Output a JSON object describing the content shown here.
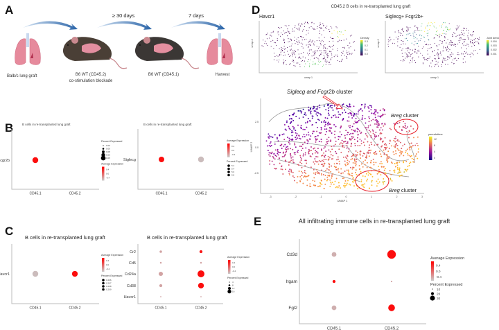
{
  "panel_labels": {
    "a": "A",
    "b": "B",
    "c": "C",
    "d": "D",
    "e": "E"
  },
  "panel_a": {
    "steps": [
      "Balb/c lung graft",
      "B6 WT (CD45.2)",
      "co-stimulation blockade",
      "B6 WT (CD45.1)",
      "Harvest"
    ],
    "intervals": [
      "≥  30 days",
      "7 days"
    ],
    "colors": {
      "lung": "#e68a9c",
      "mouse1": "#4a3f36",
      "mouse2": "#3b3735",
      "arrow": "#2a64a8"
    }
  },
  "chart_data": [
    {
      "id": "b1",
      "type": "dotplot",
      "title": "B cells in re-transplanted lung graft",
      "genes": [
        "Fcgr2b"
      ],
      "groups": [
        "CD45.1",
        "CD45.2"
      ],
      "avg_expression": [
        [
          0.7,
          null
        ]
      ],
      "pct_expressed": [
        [
          0.09,
          0
        ]
      ],
      "legend_order": "pct-first",
      "pct_title": "Percent Expressed",
      "pct_labels": [
        "0.09",
        "0.00",
        "0.08",
        "0.00",
        "0.05"
      ],
      "avg_title": "Average Expression",
      "avg_labels": [
        "0.4",
        "0.0",
        "-0.4"
      ]
    },
    {
      "id": "b2",
      "type": "dotplot",
      "title": "B cells in re-transplanted lung graft",
      "genes": [
        "Siglecg"
      ],
      "groups": [
        "CD45.1",
        "CD45.2"
      ],
      "avg_expression": [
        [
          0.7,
          -0.7
        ]
      ],
      "pct_expressed": [
        [
          5.2,
          5.8
        ]
      ],
      "legend_order": "avg-first",
      "avg_title": "Average Expression",
      "avg_labels": [
        "0.4",
        "0.0",
        "-0.4"
      ],
      "pct_title": "Percent Expressed",
      "pct_labels": [
        "5.2",
        "5.4",
        "5.6",
        "5.8"
      ]
    },
    {
      "id": "c1",
      "type": "dotplot",
      "title": "B cells in re-transplanted lung graft",
      "genes": [
        "Havcr1"
      ],
      "groups": [
        "CD45.1",
        "CD45.2"
      ],
      "avg_expression": [
        [
          -0.7,
          0.7
        ]
      ],
      "pct_expressed": [
        [
          0.209,
          0.206
        ]
      ],
      "legend_order": "avg-first",
      "avg_title": "Average Expression",
      "avg_labels": [
        "0.4",
        "0.0",
        "-0.4"
      ],
      "pct_title": "Percent Expressed",
      "pct_labels": [
        "0.206",
        "0.207",
        "0.208",
        "0.209"
      ]
    },
    {
      "id": "c2",
      "type": "dotplot",
      "title": "B cells in re-transplanted lung graft",
      "genes": [
        "Cr2",
        "Cd5",
        "Cd24a",
        "Cd38",
        "Havcr1"
      ],
      "groups": [
        "CD45.1",
        "CD45.2"
      ],
      "avg_expression": [
        [
          -0.5,
          0.6
        ],
        [
          -0.5,
          -0.5
        ],
        [
          -0.5,
          0.7
        ],
        [
          -0.5,
          0.7
        ],
        [
          -0.5,
          -0.5
        ]
      ],
      "pct_expressed": [
        [
          2,
          3
        ],
        [
          1,
          1
        ],
        [
          6,
          16
        ],
        [
          3,
          11
        ],
        [
          0.5,
          0.5
        ]
      ],
      "legend_order": "avg-first",
      "avg_title": "Average Expression",
      "avg_labels": [
        "0.4",
        "0.0",
        "-0.4"
      ],
      "pct_title": "Percent Expressed",
      "pct_labels": [
        "4",
        "8",
        "12",
        "16"
      ]
    },
    {
      "id": "e",
      "type": "dotplot",
      "title": "All infiltrating immune cells in re-transplanted lung graft",
      "genes": [
        "Cd3d",
        "Itgam",
        "Fgl2"
      ],
      "groups": [
        "CD45.1",
        "CD45.2"
      ],
      "avg_expression": [
        [
          -0.6,
          0.7
        ],
        [
          0.7,
          -0.5
        ],
        [
          -0.6,
          0.7
        ]
      ],
      "pct_expressed": [
        [
          10,
          33
        ],
        [
          4,
          1
        ],
        [
          10,
          20
        ]
      ],
      "legend_order": "avg-first",
      "avg_title": "Average Expression",
      "avg_labels": [
        "0.4",
        "0.0",
        "-0.4"
      ],
      "pct_title": "Percent Expressed",
      "pct_labels": [
        "10",
        "20",
        "30"
      ]
    },
    {
      "id": "d",
      "type": "scatter",
      "title": "CD45.2 B cells in re-transplanted lung graft",
      "subplots": [
        {
          "title": "Havcr1",
          "xlabel": "umap 1",
          "ylabel": "umap 2",
          "legend_title": "Density",
          "legend_labels": [
            "0.3",
            "0.2",
            "0.1",
            "0.0"
          ]
        },
        {
          "title": "Siglecg+ Fcgr2b+",
          "xlabel": "umap 1",
          "ylabel": "umap 2",
          "legend_title": "Joint density",
          "legend_labels": [
            "0.004",
            "0.003",
            "0.002",
            "0.001"
          ]
        }
      ],
      "main": {
        "xlabel": "UMAP 1",
        "ylabel": "UMAP 2",
        "legend_title": "pseudotime",
        "legend_labels": [
          "12",
          "8",
          "4",
          "0"
        ],
        "x_ticks": [
          "-3",
          "-2",
          "-1",
          "0",
          "1",
          "2",
          "3"
        ],
        "y_ticks": [
          "2.5",
          "0.0",
          "-2.5"
        ],
        "annotations": {
          "top_cluster_italic": "Siglecg and Fcgr2b",
          "top_cluster_suffix": " cluster",
          "breg_italic": "Breg",
          "breg_suffix": " cluster"
        }
      }
    }
  ],
  "colors": {
    "high": "#ff0000",
    "low": "#c8c8c8",
    "ellipse": "#e8202a"
  }
}
